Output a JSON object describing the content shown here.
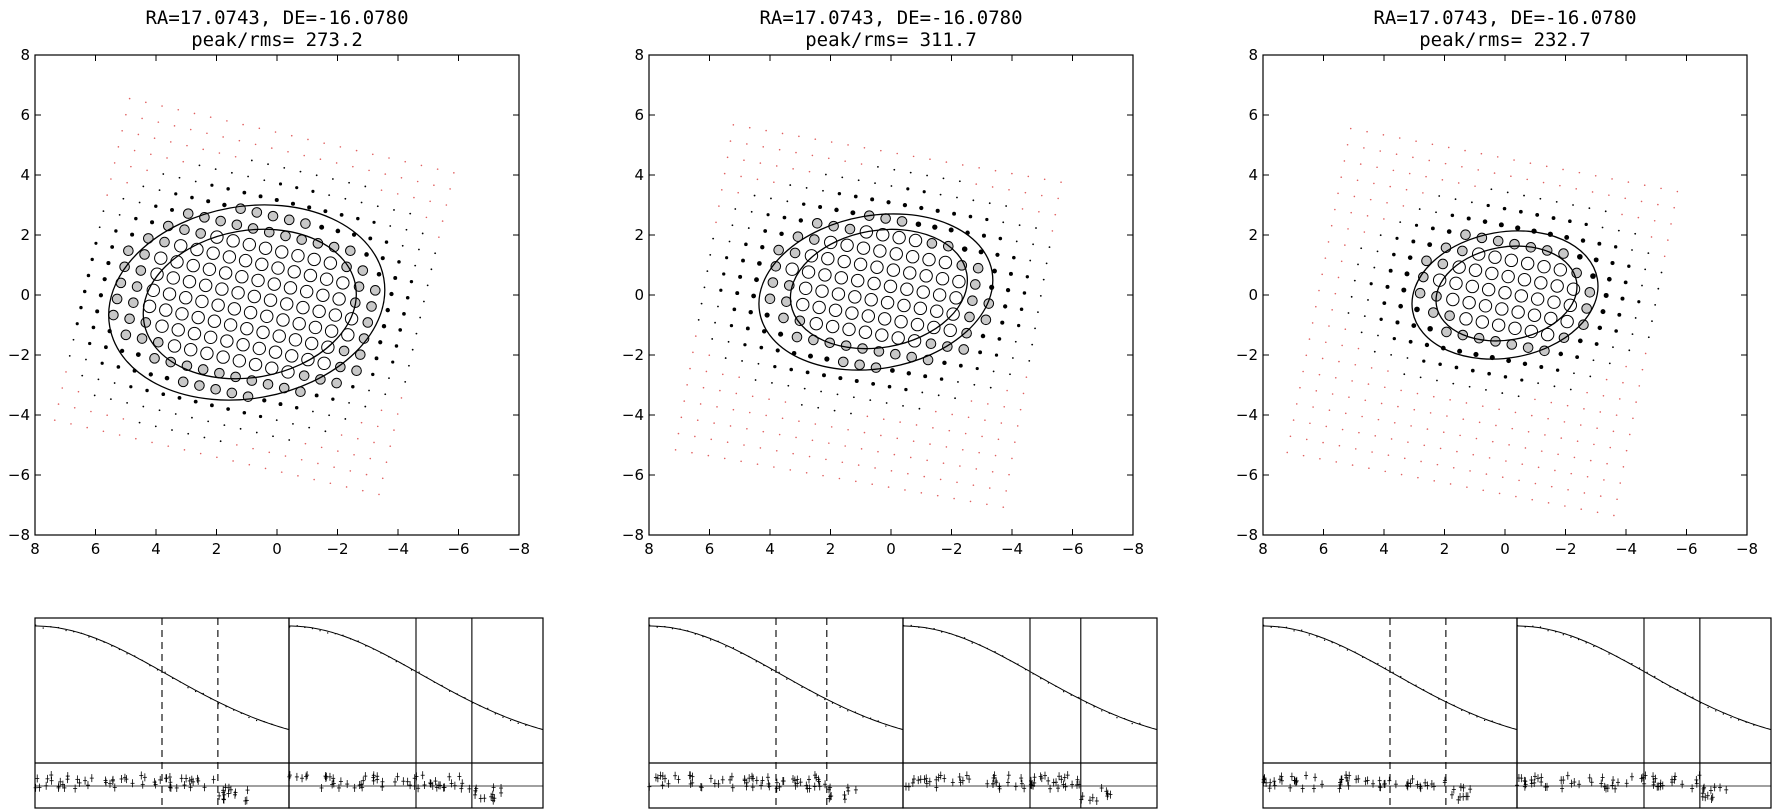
{
  "chart_data": [
    {
      "type": "scatter",
      "title_line1": "RA=17.0743, DE=-16.0780",
      "title_line2": "peak/rms= 273.2",
      "xlim": [
        8,
        -8
      ],
      "ylim": [
        -8,
        8
      ],
      "xticks": [
        "8",
        "6",
        "4",
        "2",
        "0",
        "−2",
        "−4",
        "−6",
        "−8"
      ],
      "yticks": [
        "8",
        "6",
        "4",
        "2",
        "0",
        "−2",
        "−4",
        "−6",
        "−8"
      ],
      "grid_rotation_deg": 13,
      "grid_spacing": 0.55,
      "grid_center": [
        0.75,
        -0.05
      ],
      "grid_half_extent": 5.5,
      "source_center": [
        1.0,
        -0.2
      ],
      "source_sigma": [
        2.3,
        1.6
      ],
      "ellipses": [
        {
          "center": [
            1.0,
            -0.25
          ],
          "rx": 4.6,
          "ry": 3.2,
          "angle_deg": 10
        },
        {
          "center": [
            0.9,
            -0.3
          ],
          "rx": 3.55,
          "ry": 2.45,
          "angle_deg": 10
        }
      ],
      "profile_vlines": [
        0.5,
        0.72
      ],
      "profile_line_style": [
        "dashed",
        "solid"
      ]
    },
    {
      "type": "scatter",
      "title_line1": "RA=17.0743, DE=-16.0780",
      "title_line2": "peak/rms= 311.7",
      "xlim": [
        8,
        -8
      ],
      "ylim": [
        -8,
        8
      ],
      "xticks": [
        "8",
        "6",
        "4",
        "2",
        "0",
        "−2",
        "−4",
        "−6",
        "−8"
      ],
      "yticks": [
        "8",
        "6",
        "4",
        "2",
        "0",
        "−2",
        "−4",
        "−6",
        "−8"
      ],
      "grid_rotation_deg": 10,
      "grid_spacing": 0.55,
      "grid_center": [
        0.75,
        -0.7
      ],
      "grid_half_extent": 5.6,
      "source_center": [
        0.5,
        0.15
      ],
      "source_sigma": [
        2.1,
        1.4
      ],
      "ellipses": [
        {
          "center": [
            0.5,
            0.1
          ],
          "rx": 3.9,
          "ry": 2.55,
          "angle_deg": 10
        },
        {
          "center": [
            0.4,
            0.2
          ],
          "rx": 2.95,
          "ry": 1.95,
          "angle_deg": 10
        }
      ],
      "profile_vlines": [
        0.5,
        0.7
      ],
      "profile_line_style": [
        "dashed",
        "solid"
      ]
    },
    {
      "type": "scatter",
      "title_line1": "RA=17.0743, DE=-16.0780",
      "title_line2": "peak/rms= 232.7",
      "xlim": [
        8,
        -8
      ],
      "ylim": [
        -8,
        8
      ],
      "xticks": [
        "8",
        "6",
        "4",
        "2",
        "0",
        "−2",
        "−4",
        "−6",
        "−8"
      ],
      "yticks": [
        "8",
        "6",
        "4",
        "2",
        "0",
        "−2",
        "−4",
        "−6",
        "−8"
      ],
      "grid_rotation_deg": 11,
      "grid_spacing": 0.55,
      "grid_center": [
        0.75,
        -0.9
      ],
      "grid_half_extent": 5.6,
      "source_center": [
        0.0,
        0.1
      ],
      "source_sigma": [
        1.8,
        1.2
      ],
      "ellipses": [
        {
          "center": [
            0.0,
            0.0
          ],
          "rx": 3.1,
          "ry": 2.1,
          "angle_deg": 10
        },
        {
          "center": [
            -0.05,
            0.05
          ],
          "rx": 2.35,
          "ry": 1.55,
          "angle_deg": 10
        }
      ],
      "profile_vlines": [
        0.5,
        0.72
      ],
      "profile_line_style": [
        "dashed",
        "solid"
      ]
    }
  ]
}
